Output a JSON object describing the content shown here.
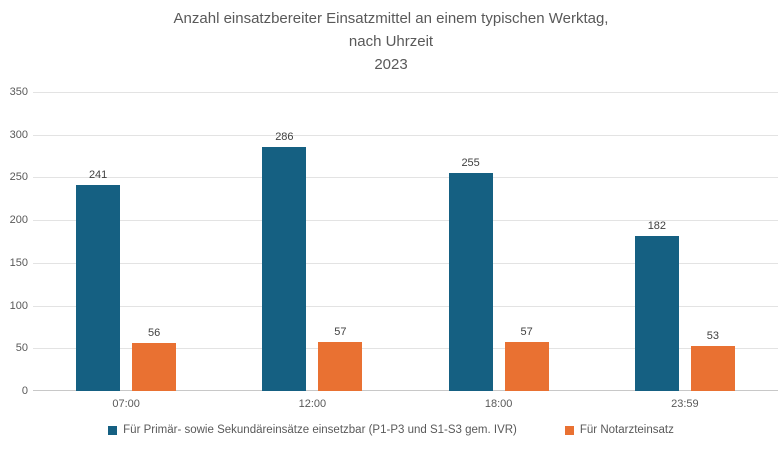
{
  "title": {
    "line1": "Anzahl einsatzbereiter Einsatzmittel an einem typischen Werktag,",
    "line2": "nach Uhrzeit",
    "line3": "2023"
  },
  "chart_data": {
    "type": "bar",
    "title": "Anzahl einsatzbereiter Einsatzmittel an einem typischen Werktag, nach Uhrzeit 2023",
    "categories": [
      "07:00",
      "12:00",
      "18:00",
      "23:59"
    ],
    "series": [
      {
        "name": "Für Primär- sowie Sekundäreinsätze einsetzbar (P1-P3 und S1-S3 gem. IVR)",
        "color": "#156082",
        "values": [
          241,
          286,
          255,
          182
        ]
      },
      {
        "name": "Für Notarzteinsatz",
        "color": "#E97132",
        "values": [
          56,
          57,
          57,
          53
        ]
      }
    ],
    "xlabel": "",
    "ylabel": "",
    "ylim": [
      0,
      350
    ],
    "yticks": [
      0,
      50,
      100,
      150,
      200,
      250,
      300,
      350
    ],
    "grid": true,
    "legend_position": "bottom"
  },
  "colors": {
    "grid": "#e3e3e3",
    "axis": "#c8c8c8",
    "title_text": "#595959",
    "tick_text": "#595959",
    "value_label_text": "#404040"
  }
}
